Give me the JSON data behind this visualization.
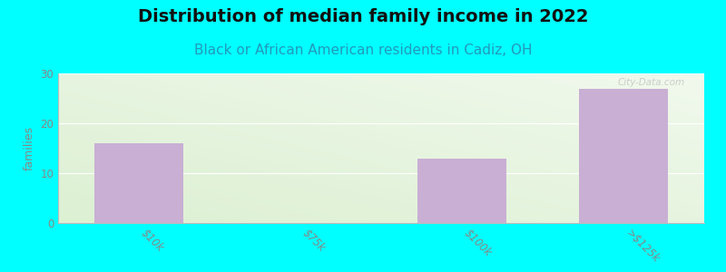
{
  "title": "Distribution of median family income in 2022",
  "subtitle": "Black or African American residents in Cadiz, OH",
  "categories": [
    "$10k",
    "$75k",
    "$100k",
    ">$125k"
  ],
  "values": [
    16,
    0,
    13,
    27
  ],
  "bar_color": "#c9afd4",
  "background_color": "#00ffff",
  "ylabel": "families",
  "ylim": [
    0,
    30
  ],
  "yticks": [
    0,
    10,
    20,
    30
  ],
  "title_fontsize": 14,
  "subtitle_fontsize": 11,
  "subtitle_color": "#2299bb",
  "title_color": "#111111",
  "watermark": "City-Data.com",
  "bar_width": 0.55,
  "grid_color": "#dddddd"
}
